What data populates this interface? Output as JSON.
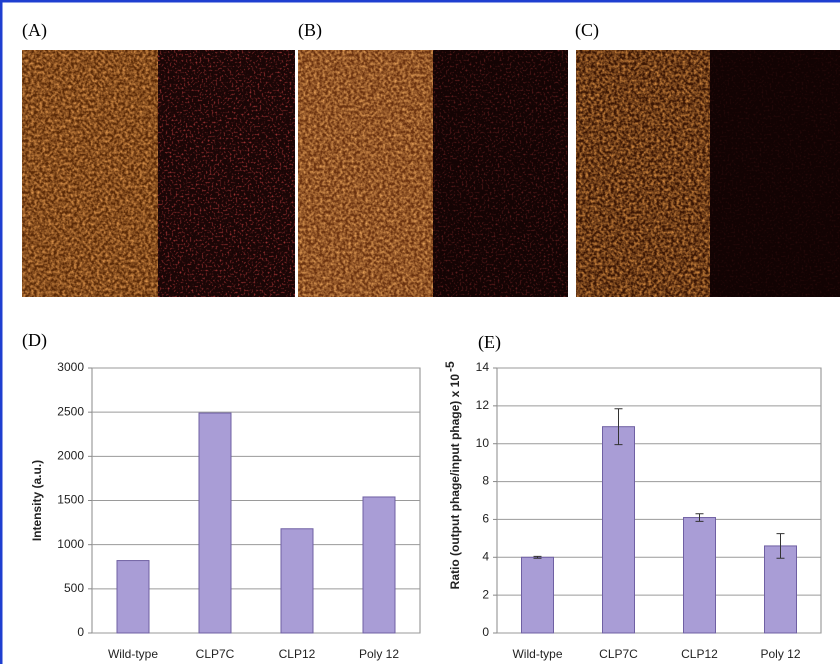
{
  "panels": [
    {
      "label": "(A)"
    },
    {
      "label": "(B)"
    },
    {
      "label": "(C)"
    }
  ],
  "chart_data": [
    {
      "type": "bar",
      "panel_label": "(D)",
      "y_label": "Intensity (a.u.)",
      "categories": [
        "Wild-type",
        "CLP7C",
        "CLP12",
        "Poly 12"
      ],
      "values": [
        820,
        2490,
        1180,
        1540
      ],
      "color": "#a99dd6",
      "ylim": [
        0,
        3000
      ],
      "yticks": [
        0,
        500,
        1000,
        1500,
        2000,
        2500,
        3000
      ],
      "grid": true
    },
    {
      "type": "bar",
      "panel_label": "(E)",
      "y_label": "Ratio (output phage/input phage) x 10",
      "y_label_superscript": "-5",
      "categories": [
        "Wild-type",
        "CLP7C",
        "CLP12",
        "Poly 12"
      ],
      "values": [
        4.0,
        10.9,
        6.1,
        4.6
      ],
      "errors": [
        0.05,
        0.95,
        0.2,
        0.65
      ],
      "color": "#a99dd6",
      "ylim": [
        0,
        14
      ],
      "yticks": [
        0,
        2,
        4,
        6,
        8,
        10,
        12,
        14
      ],
      "grid": true
    }
  ]
}
